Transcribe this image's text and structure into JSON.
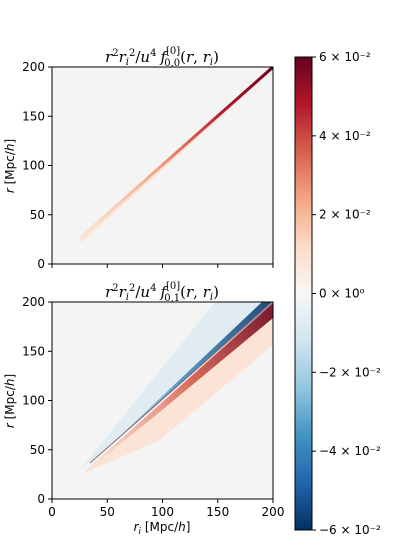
{
  "chart_data": [
    {
      "type": "heatmap",
      "title": "r²rᵢ²/u⁴ f⁽⁰⁾₀,₀(r, rᵢ)",
      "xlabel": "",
      "ylabel": "r [Mpc/h]",
      "xlim": [
        0,
        200
      ],
      "ylim": [
        0,
        200
      ],
      "yticks": [
        "0",
        "50",
        "100",
        "150",
        "200"
      ],
      "xticks_labeled": false,
      "description_pattern": "positive values concentrated along diagonal r = r_i, strongest at large r"
    },
    {
      "type": "heatmap",
      "title": "r²rᵢ²/u⁴ f⁽⁰⁾₀,₁(r, rᵢ)",
      "xlabel": "rᵢ [Mpc/h]",
      "ylabel": "r [Mpc/h]",
      "xlim": [
        0,
        200
      ],
      "ylim": [
        0,
        200
      ],
      "xticks": [
        "0",
        "50",
        "100",
        "150",
        "200"
      ],
      "yticks": [
        "0",
        "50",
        "100",
        "150",
        "200"
      ],
      "description_pattern": "negative (blue) band above diagonal, positive (red) band below diagonal"
    }
  ],
  "colorbar": {
    "colormap": "RdBu_r",
    "vmin": -0.06,
    "vmax": 0.06,
    "ticks": [
      {
        "value": 0.06,
        "label": "6 × 10⁻²"
      },
      {
        "value": 0.04,
        "label": "4 × 10⁻²"
      },
      {
        "value": 0.02,
        "label": "2 × 10⁻²"
      },
      {
        "value": 0.0,
        "label": "0 × 10⁰"
      },
      {
        "value": -0.02,
        "label": "−2 × 10⁻²"
      },
      {
        "value": -0.04,
        "label": "−4 × 10⁻²"
      },
      {
        "value": -0.06,
        "label": "−6 × 10⁻²"
      }
    ]
  },
  "colors": {
    "deep_red": "#67001f",
    "red": "#d6604d",
    "light_red": "#fddbc7",
    "white": "#f7f7f7",
    "light_blue": "#d1e5f0",
    "blue": "#4393c3",
    "deep_blue": "#053061"
  }
}
